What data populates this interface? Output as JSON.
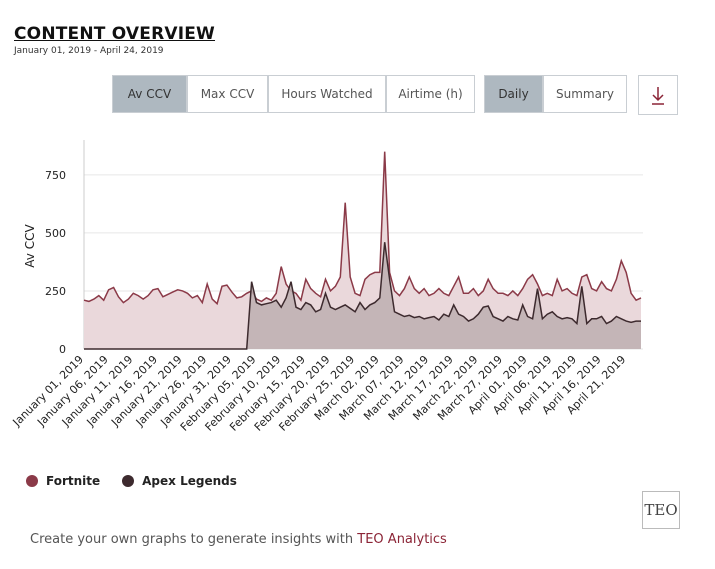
{
  "header": {
    "title": "CONTENT OVERVIEW",
    "subtitle": "January 01, 2019 - April 24, 2019"
  },
  "metric_buttons": [
    "Av CCV",
    "Max CCV",
    "Hours Watched",
    "Airtime (h)"
  ],
  "view_buttons": [
    "Daily",
    "Summary"
  ],
  "footer": {
    "text": "Create your own graphs to generate insights with",
    "link": "TEO Analytics",
    "logo": "TEO"
  },
  "chart_data": {
    "type": "area",
    "y_label": "Av CCV",
    "categories": [
      "January 01, 2019",
      null,
      null,
      null,
      null,
      "January 06, 2019",
      null,
      null,
      null,
      null,
      "January 11, 2019",
      null,
      null,
      null,
      null,
      "January 16, 2019",
      null,
      null,
      null,
      null,
      "January 21, 2019",
      null,
      null,
      null,
      null,
      "January 26, 2019",
      null,
      null,
      null,
      null,
      "January 31, 2019",
      null,
      null,
      null,
      null,
      "February 05, 2019",
      null,
      null,
      null,
      null,
      "February 10, 2019",
      null,
      null,
      null,
      null,
      "February 15, 2019",
      null,
      null,
      null,
      null,
      "February 20, 2019",
      null,
      null,
      null,
      null,
      "February 25, 2019",
      null,
      null,
      null,
      null,
      "March 02, 2019",
      null,
      null,
      null,
      null,
      "March 07, 2019",
      null,
      null,
      null,
      null,
      "March 12, 2019",
      null,
      null,
      null,
      null,
      "March 17, 2019",
      null,
      null,
      null,
      null,
      "March 22, 2019",
      null,
      null,
      null,
      null,
      "March 27, 2019",
      null,
      null,
      null,
      null,
      "April 01, 2019",
      null,
      null,
      null,
      null,
      "April 06, 2019",
      null,
      null,
      null,
      null,
      "April 11, 2019",
      null,
      null,
      null,
      null,
      "April 16, 2019",
      null,
      null,
      null,
      null,
      "April 21, 2019",
      null,
      null,
      null
    ],
    "series": [
      {
        "name": "Fortnite",
        "color": "#8b3a48",
        "values": [
          210,
          205,
          215,
          230,
          210,
          255,
          265,
          225,
          200,
          215,
          240,
          230,
          215,
          230,
          255,
          260,
          225,
          235,
          245,
          255,
          250,
          240,
          220,
          230,
          200,
          280,
          215,
          195,
          270,
          275,
          245,
          220,
          225,
          240,
          250,
          215,
          205,
          220,
          210,
          240,
          355,
          280,
          250,
          240,
          210,
          300,
          260,
          240,
          225,
          300,
          250,
          270,
          310,
          630,
          310,
          240,
          230,
          300,
          320,
          330,
          330,
          850,
          330,
          250,
          230,
          260,
          310,
          260,
          240,
          260,
          230,
          240,
          260,
          240,
          230,
          270,
          310,
          240,
          240,
          260,
          230,
          250,
          300,
          260,
          240,
          240,
          230,
          250,
          230,
          260,
          300,
          320,
          280,
          230,
          240,
          230,
          300,
          250,
          260,
          240,
          230,
          310,
          320,
          260,
          250,
          290,
          260,
          250,
          300,
          380,
          330,
          240,
          210,
          220
        ]
      },
      {
        "name": "Apex Legends",
        "color": "#3d2a2e",
        "values": [
          0,
          0,
          0,
          0,
          0,
          0,
          0,
          0,
          0,
          0,
          0,
          0,
          0,
          0,
          0,
          0,
          0,
          0,
          0,
          0,
          0,
          0,
          0,
          0,
          0,
          0,
          0,
          0,
          0,
          0,
          0,
          0,
          0,
          0,
          290,
          200,
          190,
          195,
          200,
          210,
          180,
          220,
          290,
          180,
          170,
          200,
          190,
          160,
          170,
          240,
          180,
          170,
          180,
          190,
          175,
          160,
          200,
          170,
          190,
          200,
          220,
          460,
          300,
          160,
          150,
          140,
          145,
          135,
          140,
          130,
          135,
          140,
          125,
          150,
          140,
          190,
          150,
          140,
          120,
          130,
          150,
          180,
          185,
          140,
          130,
          120,
          140,
          130,
          125,
          190,
          140,
          130,
          260,
          130,
          150,
          160,
          140,
          130,
          135,
          130,
          110,
          270,
          110,
          130,
          130,
          140,
          110,
          120,
          140,
          130,
          120,
          115,
          120,
          120
        ]
      }
    ],
    "ylim": [
      0,
      900
    ],
    "yticks": [
      0,
      250,
      500,
      750
    ],
    "grid": true
  }
}
